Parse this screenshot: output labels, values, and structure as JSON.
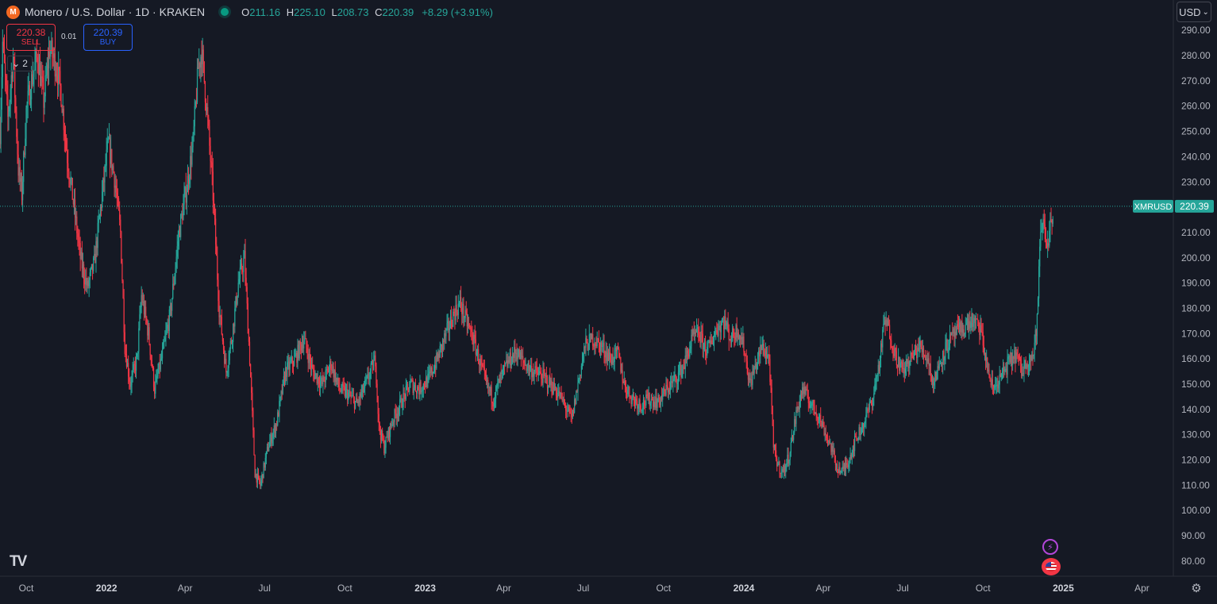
{
  "legend": {
    "symbol_title": "Monero / U.S. Dollar · 1D · KRAKEN",
    "open_key": "O",
    "open": "211.16",
    "high_key": "H",
    "high": "225.10",
    "low_key": "L",
    "low": "208.73",
    "close_key": "C",
    "close": "220.39",
    "change": "+8.29 (+3.91%)"
  },
  "trade": {
    "sell_price": "220.38",
    "sell_label": "SELL",
    "spread": "0.01",
    "buy_price": "220.39",
    "buy_label": "BUY"
  },
  "indicators_collapsed_count": "2",
  "currency": "USD",
  "logo_text": "TV",
  "icons": {
    "symbol_logo": "monero-logo-icon",
    "flash_event": "lightning-icon",
    "economic_event": "us-flag-icon",
    "settings": "gear-icon",
    "collapse": "chevron-down-icon",
    "currency_dropdown": "chevron-down-icon"
  },
  "colors": {
    "background": "#151924",
    "up": "#26a69a",
    "down": "#f23645",
    "grid": "#1e222d",
    "axis_text": "#b2b5be",
    "price_line": "#26a69a"
  },
  "chart_data": {
    "type": "candlestick",
    "symbol": "XMRUSD",
    "interval": "1D",
    "exchange": "KRAKEN",
    "last_price": 220.39,
    "last_price_label": "220.39",
    "symbol_label": "XMRUSD",
    "x_range": [
      "2021-09-01",
      "2025-05-07"
    ],
    "y_range": [
      74,
      302
    ],
    "grid": false,
    "y_ticks": [
      80,
      90,
      100,
      110,
      120,
      130,
      140,
      150,
      160,
      170,
      180,
      190,
      200,
      210,
      220,
      230,
      240,
      250,
      260,
      270,
      280,
      290
    ],
    "y_tick_labels": [
      "80.00",
      "90.00",
      "100.00",
      "110.00",
      "120.00",
      "130.00",
      "140.00",
      "150.00",
      "160.00",
      "170.00",
      "180.00",
      "190.00",
      "200.00",
      "210.00",
      "220.00",
      "230.00",
      "240.00",
      "250.00",
      "260.00",
      "270.00",
      "280.00",
      "290.00"
    ],
    "x_ticks": [
      {
        "date": "2021-10-01",
        "label": "Oct",
        "bold": false
      },
      {
        "date": "2022-01-01",
        "label": "2022",
        "bold": true
      },
      {
        "date": "2022-04-01",
        "label": "Apr",
        "bold": false
      },
      {
        "date": "2022-07-01",
        "label": "Jul",
        "bold": false
      },
      {
        "date": "2022-10-01",
        "label": "Oct",
        "bold": false
      },
      {
        "date": "2023-01-01",
        "label": "2023",
        "bold": true
      },
      {
        "date": "2023-04-01",
        "label": "Apr",
        "bold": false
      },
      {
        "date": "2023-07-01",
        "label": "Jul",
        "bold": false
      },
      {
        "date": "2023-10-01",
        "label": "Oct",
        "bold": false
      },
      {
        "date": "2024-01-01",
        "label": "2024",
        "bold": true
      },
      {
        "date": "2024-04-01",
        "label": "Apr",
        "bold": false
      },
      {
        "date": "2024-07-01",
        "label": "Jul",
        "bold": false
      },
      {
        "date": "2024-10-01",
        "label": "Oct",
        "bold": false
      },
      {
        "date": "2025-01-01",
        "label": "2025",
        "bold": true
      },
      {
        "date": "2025-04-01",
        "label": "Apr",
        "bold": false
      }
    ],
    "price_path": [
      [
        "2021-09-01",
        250
      ],
      [
        "2021-09-04",
        285
      ],
      [
        "2021-09-10",
        255
      ],
      [
        "2021-09-16",
        280
      ],
      [
        "2021-09-22",
        235
      ],
      [
        "2021-09-26",
        225
      ],
      [
        "2021-10-01",
        258
      ],
      [
        "2021-10-07",
        270
      ],
      [
        "2021-10-14",
        280
      ],
      [
        "2021-10-21",
        262
      ],
      [
        "2021-10-28",
        283
      ],
      [
        "2021-11-05",
        275
      ],
      [
        "2021-11-10",
        265
      ],
      [
        "2021-11-17",
        240
      ],
      [
        "2021-11-24",
        222
      ],
      [
        "2021-12-02",
        200
      ],
      [
        "2021-12-10",
        188
      ],
      [
        "2021-12-18",
        198
      ],
      [
        "2021-12-27",
        225
      ],
      [
        "2022-01-03",
        245
      ],
      [
        "2022-01-10",
        232
      ],
      [
        "2022-01-17",
        210
      ],
      [
        "2022-01-22",
        165
      ],
      [
        "2022-01-28",
        150
      ],
      [
        "2022-02-05",
        160
      ],
      [
        "2022-02-10",
        185
      ],
      [
        "2022-02-18",
        170
      ],
      [
        "2022-02-25",
        148
      ],
      [
        "2022-03-05",
        160
      ],
      [
        "2022-03-15",
        178
      ],
      [
        "2022-03-25",
        210
      ],
      [
        "2022-04-03",
        228
      ],
      [
        "2022-04-10",
        245
      ],
      [
        "2022-04-16",
        275
      ],
      [
        "2022-04-20",
        282
      ],
      [
        "2022-04-26",
        258
      ],
      [
        "2022-05-03",
        225
      ],
      [
        "2022-05-10",
        180
      ],
      [
        "2022-05-18",
        155
      ],
      [
        "2022-05-25",
        170
      ],
      [
        "2022-06-01",
        190
      ],
      [
        "2022-06-08",
        200
      ],
      [
        "2022-06-14",
        160
      ],
      [
        "2022-06-20",
        115
      ],
      [
        "2022-06-26",
        110
      ],
      [
        "2022-07-05",
        125
      ],
      [
        "2022-07-15",
        135
      ],
      [
        "2022-07-25",
        155
      ],
      [
        "2022-08-05",
        160
      ],
      [
        "2022-08-15",
        168
      ],
      [
        "2022-08-25",
        155
      ],
      [
        "2022-09-05",
        150
      ],
      [
        "2022-09-15",
        158
      ],
      [
        "2022-09-25",
        148
      ],
      [
        "2022-10-05",
        146
      ],
      [
        "2022-10-15",
        142
      ],
      [
        "2022-10-25",
        150
      ],
      [
        "2022-11-05",
        160
      ],
      [
        "2022-11-09",
        133
      ],
      [
        "2022-11-15",
        125
      ],
      [
        "2022-11-25",
        136
      ],
      [
        "2022-12-05",
        143
      ],
      [
        "2022-12-15",
        150
      ],
      [
        "2022-12-25",
        148
      ],
      [
        "2023-01-05",
        152
      ],
      [
        "2023-01-15",
        160
      ],
      [
        "2023-01-25",
        170
      ],
      [
        "2023-02-03",
        178
      ],
      [
        "2023-02-10",
        182
      ],
      [
        "2023-02-17",
        175
      ],
      [
        "2023-02-25",
        168
      ],
      [
        "2023-03-05",
        158
      ],
      [
        "2023-03-12",
        150
      ],
      [
        "2023-03-20",
        144
      ],
      [
        "2023-03-28",
        152
      ],
      [
        "2023-04-05",
        158
      ],
      [
        "2023-04-15",
        163
      ],
      [
        "2023-04-25",
        158
      ],
      [
        "2023-05-05",
        155
      ],
      [
        "2023-05-15",
        153
      ],
      [
        "2023-05-25",
        150
      ],
      [
        "2023-06-05",
        145
      ],
      [
        "2023-06-12",
        140
      ],
      [
        "2023-06-18",
        136
      ],
      [
        "2023-06-25",
        150
      ],
      [
        "2023-07-03",
        165
      ],
      [
        "2023-07-12",
        168
      ],
      [
        "2023-07-22",
        165
      ],
      [
        "2023-08-01",
        160
      ],
      [
        "2023-08-10",
        162
      ],
      [
        "2023-08-17",
        150
      ],
      [
        "2023-08-25",
        145
      ],
      [
        "2023-09-05",
        142
      ],
      [
        "2023-09-15",
        144
      ],
      [
        "2023-09-25",
        143
      ],
      [
        "2023-10-05",
        148
      ],
      [
        "2023-10-15",
        152
      ],
      [
        "2023-10-25",
        158
      ],
      [
        "2023-11-03",
        168
      ],
      [
        "2023-11-10",
        170
      ],
      [
        "2023-11-20",
        163
      ],
      [
        "2023-12-01",
        172
      ],
      [
        "2023-12-10",
        175
      ],
      [
        "2023-12-17",
        168
      ],
      [
        "2023-12-25",
        172
      ],
      [
        "2024-01-01",
        165
      ],
      [
        "2024-01-08",
        150
      ],
      [
        "2024-01-15",
        158
      ],
      [
        "2024-01-22",
        165
      ],
      [
        "2024-01-30",
        160
      ],
      [
        "2024-02-04",
        125
      ],
      [
        "2024-02-09",
        118
      ],
      [
        "2024-02-15",
        115
      ],
      [
        "2024-02-22",
        122
      ],
      [
        "2024-03-01",
        138
      ],
      [
        "2024-03-08",
        148
      ],
      [
        "2024-03-18",
        142
      ],
      [
        "2024-03-26",
        138
      ],
      [
        "2024-04-02",
        132
      ],
      [
        "2024-04-10",
        125
      ],
      [
        "2024-04-16",
        118
      ],
      [
        "2024-04-22",
        115
      ],
      [
        "2024-04-30",
        120
      ],
      [
        "2024-05-08",
        128
      ],
      [
        "2024-05-18",
        135
      ],
      [
        "2024-05-28",
        145
      ],
      [
        "2024-06-05",
        160
      ],
      [
        "2024-06-10",
        175
      ],
      [
        "2024-06-15",
        172
      ],
      [
        "2024-06-22",
        162
      ],
      [
        "2024-07-01",
        155
      ],
      [
        "2024-07-10",
        160
      ],
      [
        "2024-07-20",
        165
      ],
      [
        "2024-07-30",
        160
      ],
      [
        "2024-08-05",
        150
      ],
      [
        "2024-08-12",
        158
      ],
      [
        "2024-08-20",
        165
      ],
      [
        "2024-08-30",
        170
      ],
      [
        "2024-09-08",
        172
      ],
      [
        "2024-09-18",
        175
      ],
      [
        "2024-09-28",
        172
      ],
      [
        "2024-10-05",
        158
      ],
      [
        "2024-10-12",
        148
      ],
      [
        "2024-10-20",
        152
      ],
      [
        "2024-10-30",
        158
      ],
      [
        "2024-11-08",
        162
      ],
      [
        "2024-11-14",
        155
      ],
      [
        "2024-11-22",
        160
      ],
      [
        "2024-11-28",
        162
      ],
      [
        "2024-12-02",
        175
      ],
      [
        "2024-12-05",
        205
      ],
      [
        "2024-12-09",
        215
      ],
      [
        "2024-12-13",
        205
      ],
      [
        "2024-12-17",
        212
      ],
      [
        "2024-12-21",
        220.39
      ]
    ]
  }
}
